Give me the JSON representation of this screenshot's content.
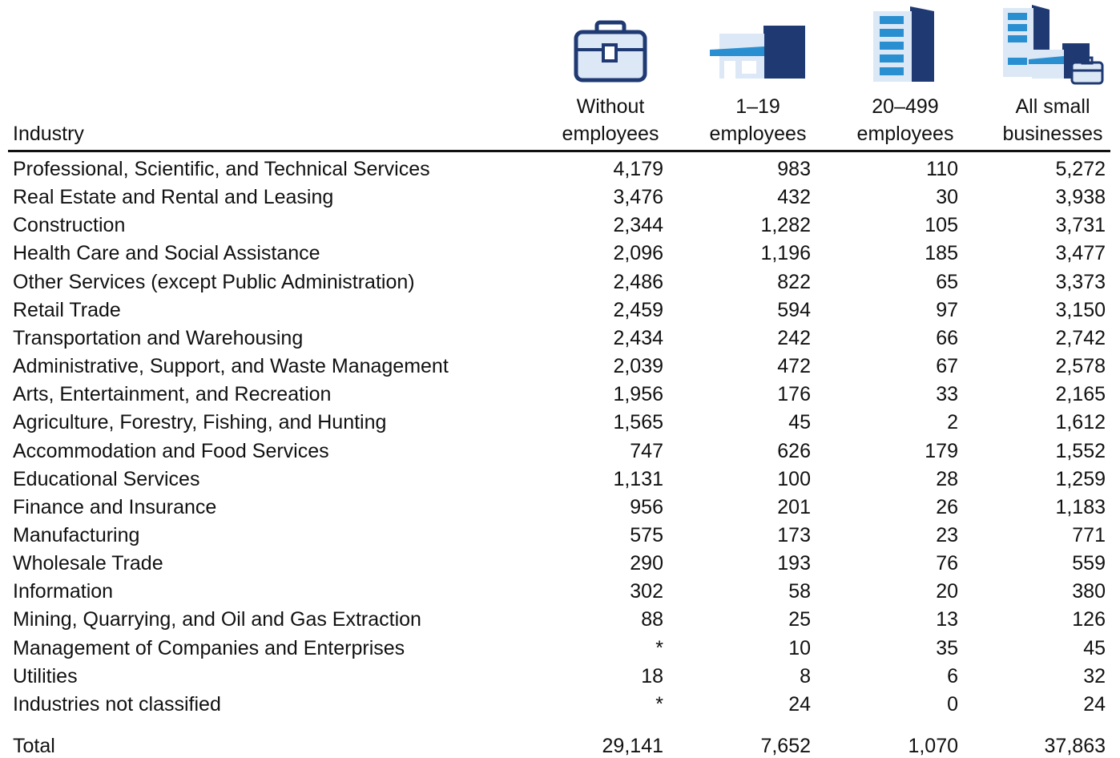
{
  "table": {
    "header": {
      "industry": "Industry",
      "columns": [
        [
          "Without",
          "employees"
        ],
        [
          "1–19",
          "employees"
        ],
        [
          "20–499",
          "employees"
        ],
        [
          "All small",
          "businesses"
        ]
      ]
    },
    "rows": [
      [
        "Professional, Scientific, and Technical Services",
        "4,179",
        "983",
        "110",
        "5,272"
      ],
      [
        "Real Estate and Rental and Leasing",
        "3,476",
        "432",
        "30",
        "3,938"
      ],
      [
        "Construction",
        "2,344",
        "1,282",
        "105",
        "3,731"
      ],
      [
        "Health Care and Social Assistance",
        "2,096",
        "1,196",
        "185",
        "3,477"
      ],
      [
        "Other Services (except Public Administration)",
        "2,486",
        "822",
        "65",
        "3,373"
      ],
      [
        "Retail Trade",
        "2,459",
        "594",
        "97",
        "3,150"
      ],
      [
        "Transportation and Warehousing",
        "2,434",
        "242",
        "66",
        "2,742"
      ],
      [
        "Administrative, Support, and Waste Management",
        "2,039",
        "472",
        "67",
        "2,578"
      ],
      [
        "Arts, Entertainment, and Recreation",
        "1,956",
        "176",
        "33",
        "2,165"
      ],
      [
        "Agriculture, Forestry, Fishing, and Hunting",
        "1,565",
        "45",
        "2",
        "1,612"
      ],
      [
        "Accommodation and Food Services",
        "747",
        "626",
        "179",
        "1,552"
      ],
      [
        "Educational Services",
        "1,131",
        "100",
        "28",
        "1,259"
      ],
      [
        "Finance and Insurance",
        "956",
        "201",
        "26",
        "1,183"
      ],
      [
        "Manufacturing",
        "575",
        "173",
        "23",
        "771"
      ],
      [
        "Wholesale Trade",
        "290",
        "193",
        "76",
        "559"
      ],
      [
        "Information",
        "302",
        "58",
        "20",
        "380"
      ],
      [
        "Mining, Quarrying, and Oil and Gas Extraction",
        "88",
        "25",
        "13",
        "126"
      ],
      [
        "Management of Companies and Enterprises",
        "*",
        "10",
        "35",
        "45"
      ],
      [
        "Utilities",
        "18",
        "8",
        "6",
        "32"
      ],
      [
        "Industries not classified",
        "*",
        "24",
        "0",
        "24"
      ]
    ],
    "total": [
      "Total",
      "29,141",
      "7,652",
      "1,070",
      "37,863"
    ]
  }
}
